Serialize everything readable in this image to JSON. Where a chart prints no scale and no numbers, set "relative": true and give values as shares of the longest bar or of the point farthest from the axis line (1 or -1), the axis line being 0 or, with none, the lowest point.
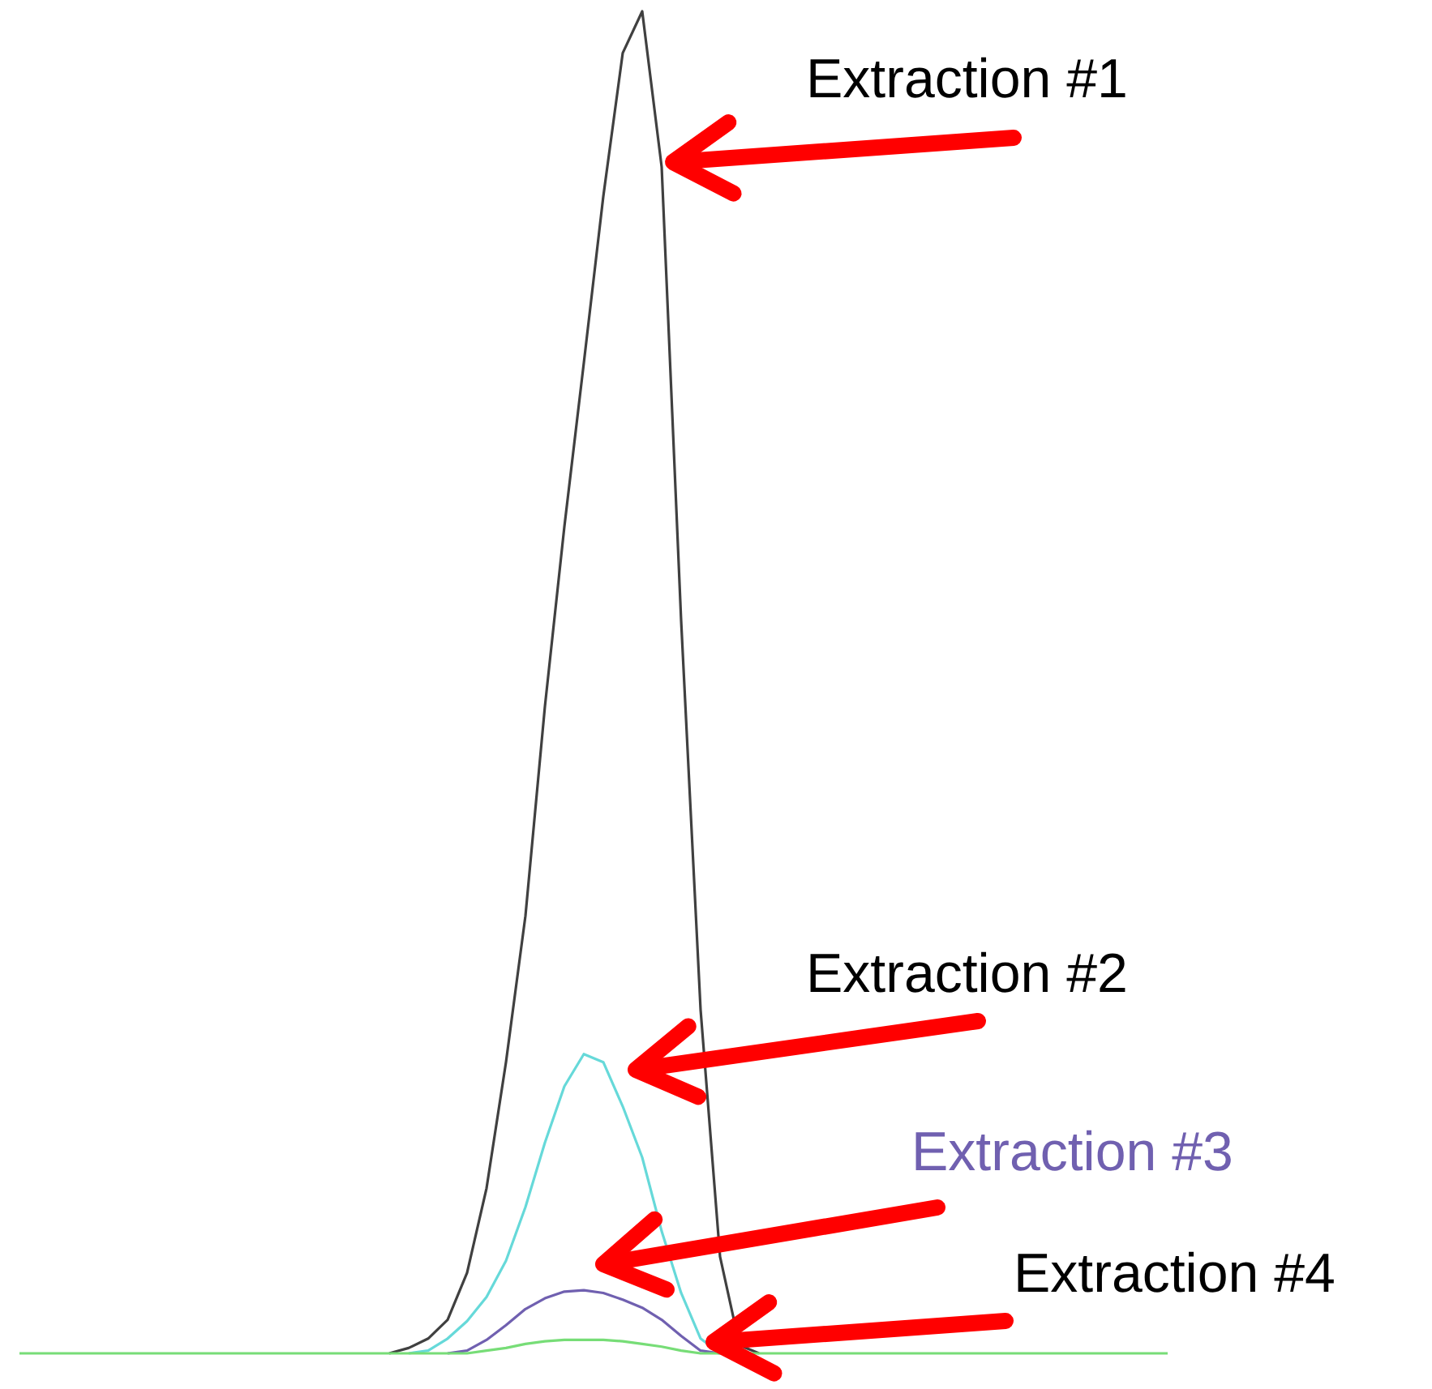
{
  "chart_data": {
    "type": "line",
    "relative": true,
    "legend": false,
    "marker": "none",
    "line_style": "solid",
    "categories": [
      null,
      null,
      null,
      null,
      null,
      null,
      null,
      null,
      null,
      null,
      null,
      null,
      null,
      null,
      null,
      null,
      null,
      null,
      null,
      null,
      null,
      null,
      null,
      null,
      null,
      null,
      null,
      null,
      null,
      null,
      null,
      null,
      null,
      null,
      null,
      null,
      null,
      null,
      null,
      null,
      null,
      null,
      null,
      null,
      null,
      null,
      null,
      null,
      null,
      null,
      null,
      null,
      null,
      null,
      null,
      null,
      null,
      null,
      null,
      null
    ],
    "series": [
      {
        "name": "Extraction #1",
        "color": "#404040",
        "values": [
          null,
          null,
          null,
          null,
          null,
          null,
          null,
          null,
          null,
          null,
          null,
          null,
          null,
          null,
          null,
          null,
          null,
          null,
          null,
          0,
          0.004,
          0.011,
          0.025,
          0.06,
          0.123,
          0.217,
          0.326,
          0.482,
          0.616,
          0.738,
          0.862,
          0.969,
          1,
          0.884,
          0.546,
          0.256,
          0.072,
          0.006,
          0,
          null,
          null,
          null,
          null,
          null,
          null,
          null,
          null,
          null,
          null,
          null,
          null,
          null,
          null,
          null,
          null,
          null,
          null,
          null,
          null,
          null
        ]
      },
      {
        "name": "Extraction #2",
        "color": "#66d9d9",
        "values": [
          null,
          null,
          null,
          null,
          null,
          null,
          null,
          null,
          null,
          null,
          null,
          null,
          null,
          null,
          null,
          null,
          null,
          null,
          null,
          null,
          0,
          0.002,
          0.011,
          0.024,
          0.042,
          0.069,
          0.109,
          0.157,
          0.199,
          0.223,
          0.217,
          0.184,
          0.146,
          0.091,
          0.045,
          0.011,
          0,
          null,
          null,
          null,
          null,
          null,
          null,
          null,
          null,
          null,
          null,
          null,
          null,
          null,
          null,
          null,
          null,
          null,
          null,
          null,
          null,
          null,
          null,
          null
        ]
      },
      {
        "name": "Extraction #3",
        "color": "#7060b0",
        "values": [
          null,
          null,
          null,
          null,
          null,
          null,
          null,
          null,
          null,
          null,
          null,
          null,
          null,
          null,
          null,
          null,
          null,
          null,
          null,
          null,
          null,
          null,
          0,
          0.002,
          0.01,
          0.021,
          0.033,
          0.041,
          0.046,
          0.047,
          0.045,
          0.04,
          0.034,
          0.025,
          0.013,
          0.002,
          0,
          null,
          null,
          null,
          null,
          null,
          null,
          null,
          null,
          null,
          null,
          null,
          null,
          null,
          null,
          null,
          null,
          null,
          null,
          null,
          null,
          null,
          null,
          null
        ]
      },
      {
        "name": "Extraction #4",
        "color": "#77dd77",
        "values": [
          0,
          0,
          0,
          0,
          0,
          0,
          0,
          0,
          0,
          0,
          0,
          0,
          0,
          0,
          0,
          0,
          0,
          0,
          0,
          0,
          0,
          0,
          0,
          0,
          0.002,
          0.004,
          0.007,
          0.009,
          0.01,
          0.01,
          0.01,
          0.009,
          0.007,
          0.005,
          0.002,
          0,
          0,
          0,
          0,
          0,
          0,
          0,
          0,
          0,
          0,
          0,
          0,
          0,
          0,
          0,
          0,
          0,
          0,
          0,
          0,
          0,
          0,
          0,
          0,
          0
        ]
      }
    ]
  }
}
